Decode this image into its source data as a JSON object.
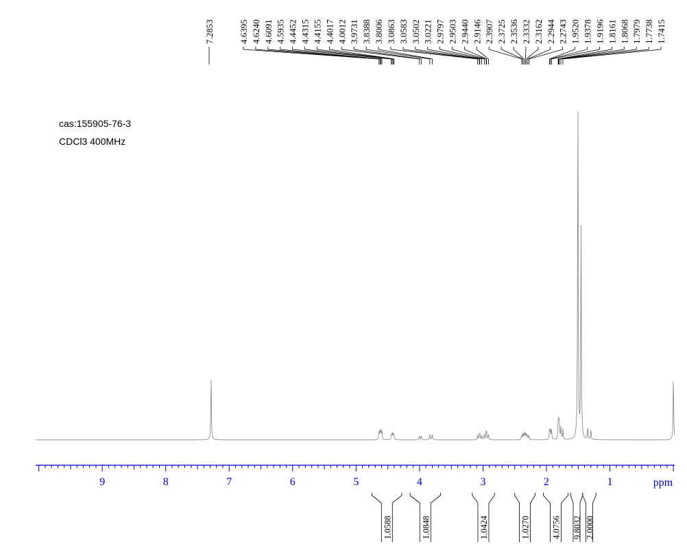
{
  "annotations": {
    "cas": "cas:155905-76-3",
    "solvent": "CDCl3 400MHz"
  },
  "chart_data": {
    "type": "line",
    "title": "",
    "xlabel": "ppm",
    "ylabel": "",
    "x_reversed": true,
    "xlim": [
      10.05,
      -0.02
    ],
    "x_ticks": [
      9,
      8,
      7,
      6,
      5,
      4,
      3,
      2,
      1
    ],
    "grid": false,
    "colors": {
      "axis": "#0000cc",
      "spectrum": "#8c8c8c",
      "labels": "#000000"
    },
    "peak_labels": [
      "7.2853",
      "4.6395",
      "4.6240",
      "4.6091",
      "4.5935",
      "4.4452",
      "4.4315",
      "4.4155",
      "4.4017",
      "4.0012",
      "3.9731",
      "3.8388",
      "3.8006",
      "3.0863",
      "3.0583",
      "3.0502",
      "3.0221",
      "2.9797",
      "2.9503",
      "2.9440",
      "2.9146",
      "2.3907",
      "2.3725",
      "2.3536",
      "2.3332",
      "2.3162",
      "2.2944",
      "2.2743",
      "1.9520",
      "1.9378",
      "1.9196",
      "1.8161",
      "1.8068",
      "1.7979",
      "1.7738",
      "1.7415"
    ],
    "peaks": [
      {
        "ppm": 7.2853,
        "height": 0.18
      },
      {
        "ppm": 4.6395,
        "height": 0.022
      },
      {
        "ppm": 4.624,
        "height": 0.025
      },
      {
        "ppm": 4.6091,
        "height": 0.025
      },
      {
        "ppm": 4.5935,
        "height": 0.022
      },
      {
        "ppm": 4.4452,
        "height": 0.012
      },
      {
        "ppm": 4.4315,
        "height": 0.017
      },
      {
        "ppm": 4.4155,
        "height": 0.017
      },
      {
        "ppm": 4.4017,
        "height": 0.012
      },
      {
        "ppm": 4.0012,
        "height": 0.011
      },
      {
        "ppm": 3.9731,
        "height": 0.011
      },
      {
        "ppm": 3.8388,
        "height": 0.016
      },
      {
        "ppm": 3.8006,
        "height": 0.016
      },
      {
        "ppm": 3.0863,
        "height": 0.013
      },
      {
        "ppm": 3.0583,
        "height": 0.014
      },
      {
        "ppm": 3.0502,
        "height": 0.014
      },
      {
        "ppm": 3.0221,
        "height": 0.012
      },
      {
        "ppm": 2.9797,
        "height": 0.016
      },
      {
        "ppm": 2.9503,
        "height": 0.017
      },
      {
        "ppm": 2.944,
        "height": 0.017
      },
      {
        "ppm": 2.9146,
        "height": 0.015
      },
      {
        "ppm": 2.3907,
        "height": 0.012
      },
      {
        "ppm": 2.3725,
        "height": 0.016
      },
      {
        "ppm": 2.3536,
        "height": 0.019
      },
      {
        "ppm": 2.3332,
        "height": 0.02
      },
      {
        "ppm": 2.3162,
        "height": 0.017
      },
      {
        "ppm": 2.2944,
        "height": 0.013
      },
      {
        "ppm": 2.2743,
        "height": 0.009
      },
      {
        "ppm": 1.952,
        "height": 0.026
      },
      {
        "ppm": 1.9378,
        "height": 0.03
      },
      {
        "ppm": 1.9196,
        "height": 0.025
      },
      {
        "ppm": 1.8161,
        "height": 0.04
      },
      {
        "ppm": 1.8068,
        "height": 0.043
      },
      {
        "ppm": 1.7979,
        "height": 0.04
      },
      {
        "ppm": 1.7738,
        "height": 0.034
      },
      {
        "ppm": 1.7415,
        "height": 0.03
      },
      {
        "ppm": 1.505,
        "height": 1.0
      },
      {
        "ppm": 1.455,
        "height": 0.6
      },
      {
        "ppm": 1.35,
        "height": 0.035
      },
      {
        "ppm": 1.3,
        "height": 0.028
      },
      {
        "ppm": 0.0,
        "height": 0.18
      }
    ],
    "integrals": [
      {
        "from": 4.75,
        "to": 4.28,
        "value": "1.0588"
      },
      {
        "from": 4.15,
        "to": 3.67,
        "value": "1.0848"
      },
      {
        "from": 3.17,
        "to": 2.82,
        "value": "1.0424"
      },
      {
        "from": 2.5,
        "to": 2.18,
        "value": "1.0270"
      },
      {
        "from": 2.05,
        "to": 1.66,
        "value": "4.0756"
      },
      {
        "from": 1.62,
        "to": 1.43,
        "value": "9.8032"
      },
      {
        "from": 1.43,
        "to": 1.22,
        "value": "2.0000"
      }
    ]
  }
}
